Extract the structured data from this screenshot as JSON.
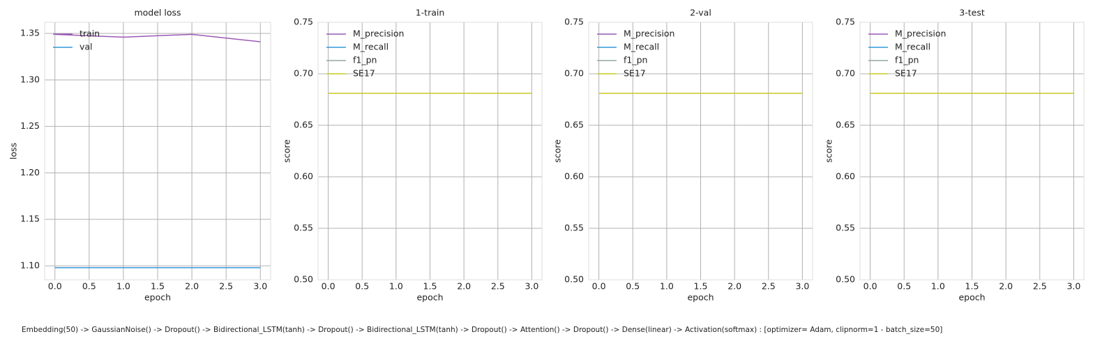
{
  "chart_data": [
    {
      "type": "line",
      "title": "model loss",
      "xlabel": "epoch",
      "ylabel": "loss",
      "x": [
        0,
        1,
        2,
        3
      ],
      "series": [
        {
          "name": "train",
          "color": "#9b59b6",
          "values": [
            1.349,
            1.346,
            1.349,
            1.341
          ]
        },
        {
          "name": "val",
          "color": "#3498db",
          "values": [
            1.098,
            1.098,
            1.098,
            1.098
          ]
        }
      ],
      "xlim": [
        -0.15,
        3.15
      ],
      "ylim": [
        1.085,
        1.362
      ],
      "xticks": [
        {
          "value": 0,
          "label": "0.0"
        },
        {
          "value": 0.5,
          "label": "0.5"
        },
        {
          "value": 1,
          "label": "1.0"
        },
        {
          "value": 1.5,
          "label": "1.5"
        },
        {
          "value": 2,
          "label": "2.0"
        },
        {
          "value": 2.5,
          "label": "2.5"
        },
        {
          "value": 3,
          "label": "3.0"
        }
      ],
      "yticks": [
        {
          "value": 1.1,
          "label": "1.10"
        },
        {
          "value": 1.15,
          "label": "1.15"
        },
        {
          "value": 1.2,
          "label": "1.20"
        },
        {
          "value": 1.25,
          "label": "1.25"
        },
        {
          "value": 1.3,
          "label": "1.30"
        },
        {
          "value": 1.35,
          "label": "1.35"
        }
      ],
      "grid": true,
      "legend": "upper left"
    },
    {
      "type": "line",
      "title": "1-train",
      "xlabel": "epoch",
      "ylabel": "score",
      "x": [
        0,
        1,
        2,
        3
      ],
      "series": [
        {
          "name": "M_precision",
          "color": "#9b59b6",
          "values": [
            null,
            null,
            null,
            null
          ]
        },
        {
          "name": "M_recall",
          "color": "#3498db",
          "values": [
            null,
            null,
            null,
            null
          ]
        },
        {
          "name": "f1_pn",
          "color": "#95a5a6",
          "values": [
            null,
            null,
            null,
            null
          ]
        },
        {
          "name": "SE17",
          "color": "#c8c820",
          "values": [
            0.681,
            0.681,
            0.681,
            0.681
          ]
        }
      ],
      "xlim": [
        -0.15,
        3.15
      ],
      "ylim": [
        0.5,
        0.75
      ],
      "xticks": [
        {
          "value": 0,
          "label": "0.0"
        },
        {
          "value": 0.5,
          "label": "0.5"
        },
        {
          "value": 1,
          "label": "1.0"
        },
        {
          "value": 1.5,
          "label": "1.5"
        },
        {
          "value": 2,
          "label": "2.0"
        },
        {
          "value": 2.5,
          "label": "2.5"
        },
        {
          "value": 3,
          "label": "3.0"
        }
      ],
      "yticks": [
        {
          "value": 0.5,
          "label": "0.50"
        },
        {
          "value": 0.55,
          "label": "0.55"
        },
        {
          "value": 0.6,
          "label": "0.60"
        },
        {
          "value": 0.65,
          "label": "0.65"
        },
        {
          "value": 0.7,
          "label": "0.70"
        },
        {
          "value": 0.75,
          "label": "0.75"
        }
      ],
      "grid": true,
      "legend": "upper left"
    },
    {
      "type": "line",
      "title": "2-val",
      "xlabel": "epoch",
      "ylabel": "score",
      "x": [
        0,
        1,
        2,
        3
      ],
      "series": [
        {
          "name": "M_precision",
          "color": "#9b59b6",
          "values": [
            null,
            null,
            null,
            null
          ]
        },
        {
          "name": "M_recall",
          "color": "#3498db",
          "values": [
            null,
            null,
            null,
            null
          ]
        },
        {
          "name": "f1_pn",
          "color": "#95a5a6",
          "values": [
            null,
            null,
            null,
            null
          ]
        },
        {
          "name": "SE17",
          "color": "#c8c820",
          "values": [
            0.681,
            0.681,
            0.681,
            0.681
          ]
        }
      ],
      "xlim": [
        -0.15,
        3.15
      ],
      "ylim": [
        0.5,
        0.75
      ],
      "xticks": [
        {
          "value": 0,
          "label": "0.0"
        },
        {
          "value": 0.5,
          "label": "0.5"
        },
        {
          "value": 1,
          "label": "1.0"
        },
        {
          "value": 1.5,
          "label": "1.5"
        },
        {
          "value": 2,
          "label": "2.0"
        },
        {
          "value": 2.5,
          "label": "2.5"
        },
        {
          "value": 3,
          "label": "3.0"
        }
      ],
      "yticks": [
        {
          "value": 0.5,
          "label": "0.50"
        },
        {
          "value": 0.55,
          "label": "0.55"
        },
        {
          "value": 0.6,
          "label": "0.60"
        },
        {
          "value": 0.65,
          "label": "0.65"
        },
        {
          "value": 0.7,
          "label": "0.70"
        },
        {
          "value": 0.75,
          "label": "0.75"
        }
      ],
      "grid": true,
      "legend": "upper left"
    },
    {
      "type": "line",
      "title": "3-test",
      "xlabel": "epoch",
      "ylabel": "score",
      "x": [
        0,
        1,
        2,
        3
      ],
      "series": [
        {
          "name": "M_precision",
          "color": "#9b59b6",
          "values": [
            null,
            null,
            null,
            null
          ]
        },
        {
          "name": "M_recall",
          "color": "#3498db",
          "values": [
            null,
            null,
            null,
            null
          ]
        },
        {
          "name": "f1_pn",
          "color": "#95a5a6",
          "values": [
            null,
            null,
            null,
            null
          ]
        },
        {
          "name": "SE17",
          "color": "#c8c820",
          "values": [
            0.681,
            0.681,
            0.681,
            0.681
          ]
        }
      ],
      "xlim": [
        -0.15,
        3.15
      ],
      "ylim": [
        0.5,
        0.75
      ],
      "xticks": [
        {
          "value": 0,
          "label": "0.0"
        },
        {
          "value": 0.5,
          "label": "0.5"
        },
        {
          "value": 1,
          "label": "1.0"
        },
        {
          "value": 1.5,
          "label": "1.5"
        },
        {
          "value": 2,
          "label": "2.0"
        },
        {
          "value": 2.5,
          "label": "2.5"
        },
        {
          "value": 3,
          "label": "3.0"
        }
      ],
      "yticks": [
        {
          "value": 0.5,
          "label": "0.50"
        },
        {
          "value": 0.55,
          "label": "0.55"
        },
        {
          "value": 0.6,
          "label": "0.60"
        },
        {
          "value": 0.65,
          "label": "0.65"
        },
        {
          "value": 0.7,
          "label": "0.70"
        },
        {
          "value": 0.75,
          "label": "0.75"
        }
      ],
      "grid": true,
      "legend": "upper left"
    }
  ],
  "caption": "Embedding(50) -> GaussianNoise() -> Dropout() -> Bidirectional_LSTM(tanh) -> Dropout() -> Bidirectional_LSTM(tanh) -> Dropout() -> Attention() -> Dropout() -> Dense(linear) -> Activation(softmax) : [optimizer= Adam, clipnorm=1 - batch_size=50]"
}
